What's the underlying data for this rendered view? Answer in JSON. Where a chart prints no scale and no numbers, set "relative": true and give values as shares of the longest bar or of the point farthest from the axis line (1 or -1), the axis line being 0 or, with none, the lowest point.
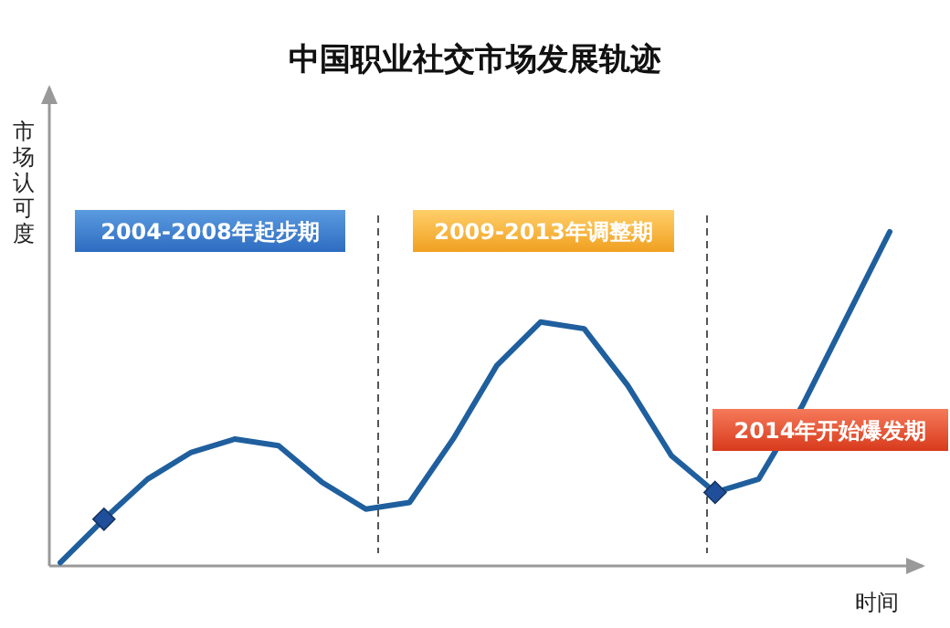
{
  "chart_data": {
    "type": "line",
    "title": "中国职业社交市场发展轨迹",
    "xlabel": "时间",
    "ylabel": "市场认可度",
    "relative": true,
    "categories": [
      null,
      null,
      null,
      null,
      null,
      null,
      null,
      null,
      null,
      null,
      null,
      null,
      null,
      null,
      null,
      null,
      null,
      null,
      null,
      null
    ],
    "series": [
      {
        "type": "line",
        "color": "#1f5f9e",
        "marker": "none",
        "values": [
          0.01,
          0.14,
          0.26,
          0.34,
          0.38,
          0.36,
          0.25,
          0.17,
          0.19,
          0.38,
          0.6,
          0.73,
          0.71,
          0.54,
          0.33,
          0.22,
          0.26,
          0.48,
          0.74,
          1
        ]
      }
    ],
    "annotations": [
      "2004-2008年起步期",
      "2009-2013年调整期",
      "2014年开始爆发期"
    ],
    "grid": false
  }
}
